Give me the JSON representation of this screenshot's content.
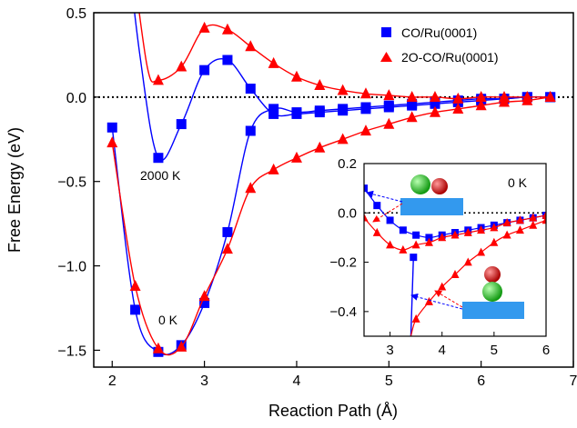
{
  "chart_data": {
    "type": "line",
    "xlabel": "Reaction Path (Å)",
    "ylabel": "Free Energy (eV)",
    "xlim": [
      1.8,
      7.0
    ],
    "ylim": [
      -1.6,
      0.5
    ],
    "xticks": [
      2,
      3,
      4,
      5,
      6,
      7
    ],
    "yticks": [
      0.5,
      0.0,
      -0.5,
      -1.0,
      -1.5
    ],
    "ytick_labels": [
      "0.5",
      "0.0",
      "−0.5",
      "−1.0",
      "−1.5"
    ],
    "legend_position": "top-right",
    "reference_line": {
      "y": 0.0,
      "style": "dotted"
    },
    "series": [
      {
        "name": "CO/Ru(0001)",
        "color": "#0000ff",
        "marker": "square",
        "condition": "0 K",
        "x": [
          2.0,
          2.25,
          2.5,
          2.75,
          3.0,
          3.25,
          3.5,
          3.75,
          4.0,
          4.25,
          4.5,
          4.75,
          5.0,
          5.25,
          5.5,
          5.75,
          6.0,
          6.25,
          6.5,
          6.75
        ],
        "y": [
          -0.18,
          -1.26,
          -1.51,
          -1.47,
          -1.22,
          -0.8,
          -0.2,
          -0.07,
          -0.09,
          -0.08,
          -0.07,
          -0.06,
          -0.05,
          -0.04,
          -0.03,
          -0.02,
          -0.01,
          -0.01,
          0.0,
          0.0
        ]
      },
      {
        "name": "CO/Ru(0001)",
        "color": "#0000ff",
        "marker": "square",
        "condition": "2000 K",
        "x": [
          2.5,
          2.75,
          3.0,
          3.25,
          3.5,
          3.75,
          4.0,
          4.25,
          4.5,
          4.75,
          5.0,
          5.25,
          5.5,
          5.75,
          6.0,
          6.25,
          6.5,
          6.75
        ],
        "y": [
          -0.36,
          -0.16,
          0.16,
          0.22,
          0.05,
          -0.1,
          -0.1,
          -0.09,
          -0.08,
          -0.07,
          -0.06,
          -0.05,
          -0.04,
          -0.03,
          -0.02,
          -0.01,
          0.0,
          0.0
        ]
      },
      {
        "name": "2O-CO/Ru(0001)",
        "color": "#ff0000",
        "marker": "triangle",
        "condition": "0 K",
        "x": [
          2.0,
          2.25,
          2.5,
          2.75,
          3.0,
          3.25,
          3.5,
          3.75,
          4.0,
          4.25,
          4.5,
          4.75,
          5.0,
          5.25,
          5.5,
          5.75,
          6.0,
          6.25,
          6.5,
          6.75
        ],
        "y": [
          -0.27,
          -1.12,
          -1.49,
          -1.48,
          -1.18,
          -0.9,
          -0.54,
          -0.43,
          -0.36,
          -0.3,
          -0.25,
          -0.2,
          -0.16,
          -0.12,
          -0.09,
          -0.07,
          -0.05,
          -0.03,
          -0.02,
          0.0
        ]
      },
      {
        "name": "2O-CO/Ru(0001)",
        "color": "#ff0000",
        "marker": "triangle",
        "condition": "2000 K",
        "x": [
          2.5,
          2.75,
          3.0,
          3.25,
          3.5,
          3.75,
          4.0,
          4.25,
          4.5,
          4.75,
          5.0,
          5.25,
          5.5,
          5.75,
          6.0,
          6.25,
          6.5,
          6.75
        ],
        "y": [
          0.1,
          0.18,
          0.41,
          0.4,
          0.3,
          0.2,
          0.12,
          0.07,
          0.04,
          0.02,
          0.01,
          0.0,
          0.0,
          -0.01,
          0.0,
          0.0,
          0.0,
          0.0
        ]
      }
    ],
    "annotations": [
      {
        "text": "2000 K",
        "x": 2.6,
        "y": -0.48
      },
      {
        "text": "0 K",
        "x": 2.55,
        "y": -1.3
      }
    ],
    "inset": {
      "xlim": [
        2.5,
        6.0
      ],
      "ylim": [
        -0.5,
        0.2
      ],
      "xticks": [
        3,
        4,
        5,
        6
      ],
      "yticks": [
        0.2,
        0.0,
        -0.2,
        -0.4
      ],
      "ytick_labels": [
        "0.2",
        "0.0",
        "−0.2",
        "−0.4"
      ],
      "label": "0 K",
      "series": [
        {
          "name": "CO/Ru(0001)",
          "color": "#0000ff",
          "marker": "square",
          "branch_descending": {
            "x": [
              2.5,
              2.75,
              3.0,
              3.25
            ],
            "y": [
              0.1,
              0.03,
              -0.03,
              -0.07
            ]
          },
          "branch_rising": {
            "x": [
              3.4,
              3.45
            ],
            "y": [
              -0.5,
              -0.18
            ]
          },
          "x": [
            3.5,
            3.75,
            4.0,
            4.25,
            4.5,
            4.75,
            5.0,
            5.25,
            5.5,
            5.75,
            6.0
          ],
          "y": [
            -0.09,
            -0.1,
            -0.09,
            -0.08,
            -0.07,
            -0.06,
            -0.05,
            -0.04,
            -0.03,
            -0.02,
            -0.01
          ]
        },
        {
          "name": "2O-CO/Ru(0001)",
          "color": "#ff0000",
          "marker": "triangle",
          "branch_descending": {
            "x": [
              2.5,
              2.75,
              3.0,
              3.25,
              3.5,
              3.75,
              4.0,
              4.25,
              4.5,
              4.75,
              5.0,
              5.25,
              5.5,
              5.75,
              6.0
            ],
            "y": [
              -0.02,
              -0.08,
              -0.13,
              -0.15,
              -0.13,
              -0.12,
              -0.1,
              -0.09,
              -0.08,
              -0.07,
              -0.06,
              -0.04,
              -0.03,
              -0.02,
              -0.01
            ]
          },
          "branch_rising": {
            "x": [
              3.4,
              3.5,
              3.75,
              4.0,
              4.25,
              4.5,
              4.75,
              5.0,
              5.25,
              5.5,
              5.75,
              6.0
            ],
            "y": [
              -0.5,
              -0.43,
              -0.36,
              -0.3,
              -0.25,
              -0.2,
              -0.16,
              -0.12,
              -0.09,
              -0.07,
              -0.05,
              -0.03
            ]
          }
        }
      ]
    }
  },
  "colors": {
    "co_series": "#0000ff",
    "o_co_series": "#ff0000",
    "surface_slab": "#3399ee",
    "atom_carbon": "#22bb22",
    "atom_oxygen": "#cc1111"
  }
}
